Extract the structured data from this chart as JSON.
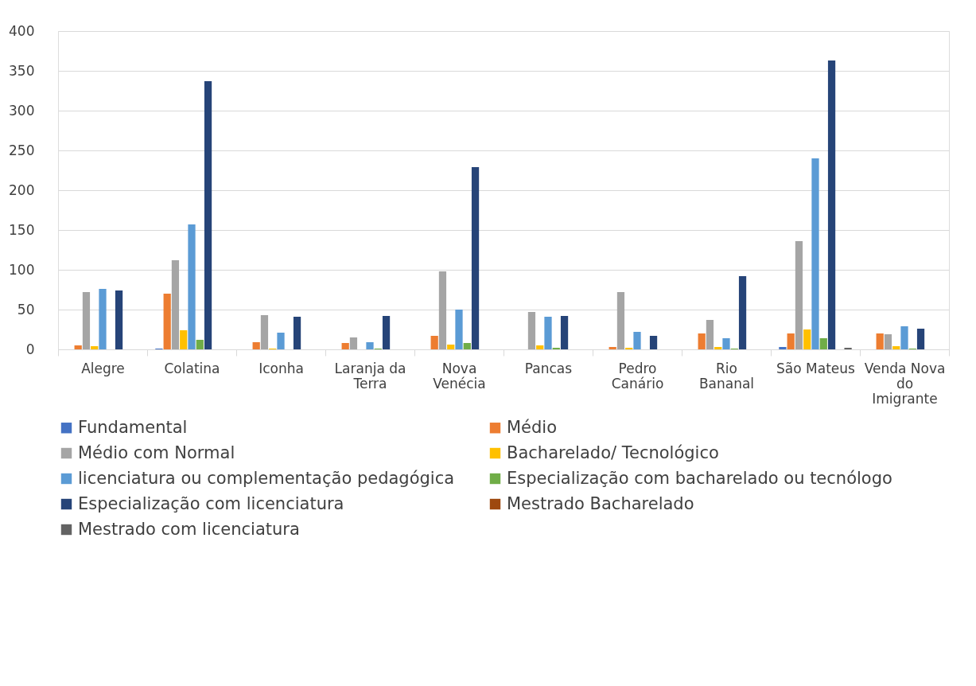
{
  "chart_data": {
    "type": "bar",
    "categories": [
      "Alegre",
      "Colatina",
      "Iconha",
      "Laranja da Terra",
      "Nova Venécia",
      "Pancas",
      "Pedro Canário",
      "Rio Bananal",
      "São Mateus",
      "Venda Nova do Imigrante"
    ],
    "series": [
      {
        "name": "Fundamental",
        "color": "#4472c4",
        "values": [
          null,
          1,
          null,
          null,
          null,
          null,
          null,
          null,
          3,
          null
        ]
      },
      {
        "name": "Médio",
        "color": "#ed7d31",
        "values": [
          5,
          70,
          9,
          8,
          17,
          null,
          3,
          20,
          20,
          20
        ]
      },
      {
        "name": "Médio com Normal",
        "color": "#a5a5a5",
        "values": [
          72,
          112,
          43,
          15,
          98,
          47,
          72,
          37,
          136,
          19
        ]
      },
      {
        "name": "Bacharelado/ Tecnológico",
        "color": "#ffc000",
        "values": [
          4,
          24,
          1,
          null,
          6,
          5,
          2,
          3,
          25,
          4
        ]
      },
      {
        "name": "licenciatura ou complementação pedagógica",
        "color": "#5b9bd5",
        "values": [
          76,
          157,
          21,
          9,
          50,
          41,
          22,
          14,
          240,
          29
        ]
      },
      {
        "name": "Especialização com bacharelado ou tecnólogo",
        "color": "#70ad47",
        "values": [
          null,
          12,
          null,
          1,
          8,
          2,
          null,
          1,
          14,
          1
        ]
      },
      {
        "name": "Especialização com licenciatura",
        "color": "#264478",
        "values": [
          74,
          337,
          41,
          42,
          229,
          42,
          17,
          92,
          363,
          26
        ]
      },
      {
        "name": "Mestrado Bacharelado",
        "color": "#9e480e",
        "values": [
          null,
          null,
          null,
          null,
          null,
          null,
          null,
          null,
          null,
          null
        ]
      },
      {
        "name": "Mestrado com licenciatura",
        "color": "#636363",
        "values": [
          null,
          null,
          null,
          null,
          null,
          null,
          null,
          null,
          2,
          null
        ]
      }
    ],
    "ylim": [
      0,
      400
    ],
    "yticks": [
      0,
      50,
      100,
      150,
      200,
      250,
      300,
      350,
      400
    ],
    "grid": "y",
    "legend": "bottom"
  }
}
